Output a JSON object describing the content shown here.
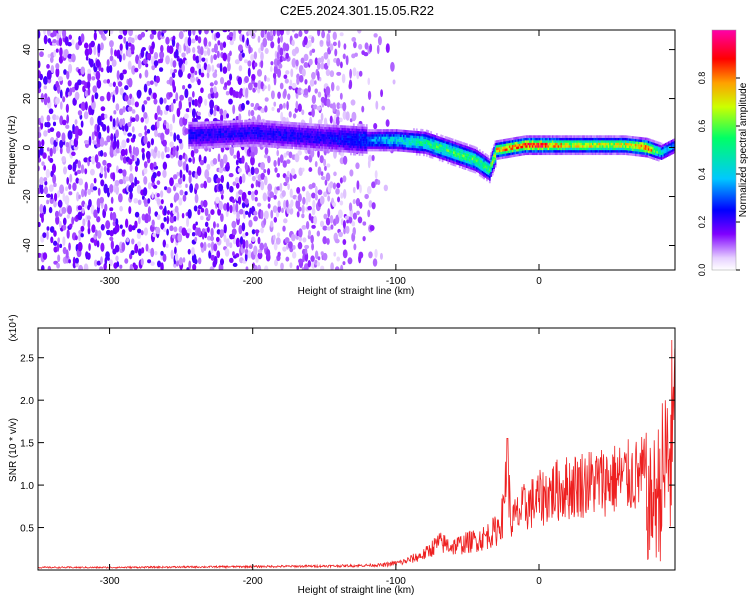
{
  "figure_title": "C2E5.2024.301.15.05.R22",
  "chart_data": [
    {
      "type": "heatmap",
      "xlabel": "Height of straight line (km)",
      "ylabel": "Frequency (Hz)",
      "xlim": [
        -350,
        95
      ],
      "ylim": [
        -50,
        48
      ],
      "xticks": [
        -300,
        -200,
        -100,
        0
      ],
      "xtick_labels": [
        "-300",
        "-200",
        "-100",
        "0"
      ],
      "yticks": [
        -40,
        -20,
        0,
        20,
        40
      ],
      "ytick_labels": [
        "-40",
        "-20",
        "0",
        "20",
        "40"
      ],
      "grid": false,
      "colorbar": {
        "label": "Normalized spectral amplitude",
        "range": [
          0,
          1
        ],
        "ticks": [
          0.0,
          0.2,
          0.4,
          0.6,
          0.8
        ],
        "tick_labels": [
          "0.0",
          "0.2",
          "0.4",
          "0.6",
          "0.8"
        ],
        "colormap": [
          "#ffffff",
          "#7f00ff",
          "#0000ff",
          "#00c8ff",
          "#00ff66",
          "#ccff00",
          "#ffa000",
          "#ff0000",
          "#ff00aa"
        ]
      },
      "ridge": {
        "x": [
          -240,
          -200,
          -150,
          -120,
          -100,
          -80,
          -60,
          -45,
          -35,
          -30,
          -20,
          -10,
          0,
          20,
          40,
          60,
          75,
          85,
          95
        ],
        "frequency": [
          5,
          6,
          4,
          3,
          3,
          2,
          -2,
          -5,
          -9,
          -1,
          0,
          1,
          1,
          1,
          1,
          1,
          0,
          -2,
          1
        ],
        "peak_amplitude": [
          0.25,
          0.25,
          0.25,
          0.35,
          0.45,
          0.55,
          0.6,
          0.6,
          0.55,
          0.8,
          0.85,
          0.9,
          0.95,
          0.75,
          0.75,
          0.75,
          0.95,
          0.5,
          0.35
        ]
      }
    },
    {
      "type": "line",
      "xlabel": "Height of straight line (km)",
      "ylabel": "SNR (10 * v/v)",
      "y_multiplier_label": "(x10⁴)",
      "xlim": [
        -350,
        95
      ],
      "ylim": [
        0,
        2.85
      ],
      "xticks": [
        -300,
        -200,
        -100,
        0
      ],
      "xtick_labels": [
        "-300",
        "-200",
        "-100",
        "0"
      ],
      "yticks": [
        0.5,
        1.0,
        1.5,
        2.0,
        2.5
      ],
      "ytick_labels": [
        "0.5",
        "1.0",
        "1.5",
        "2.0",
        "2.5"
      ],
      "color": "#ee2020",
      "grid": false,
      "series": [
        {
          "x": [
            -350,
            -300,
            -250,
            -200,
            -160,
            -130,
            -110,
            -95,
            -80,
            -70,
            -60,
            -50,
            -40,
            -30,
            -25,
            -22,
            -20,
            -15,
            -10,
            0,
            10,
            20,
            30,
            40,
            50,
            60,
            70,
            75,
            80,
            85,
            90,
            95
          ],
          "values": [
            0.03,
            0.03,
            0.035,
            0.04,
            0.045,
            0.05,
            0.06,
            0.1,
            0.2,
            0.35,
            0.3,
            0.35,
            0.4,
            0.5,
            0.7,
            1.55,
            0.6,
            0.7,
            0.8,
            0.9,
            1.0,
            1.05,
            1.1,
            1.12,
            1.15,
            1.18,
            1.2,
            1.25,
            1.5,
            1.8,
            2.4,
            2.85
          ]
        }
      ]
    }
  ]
}
